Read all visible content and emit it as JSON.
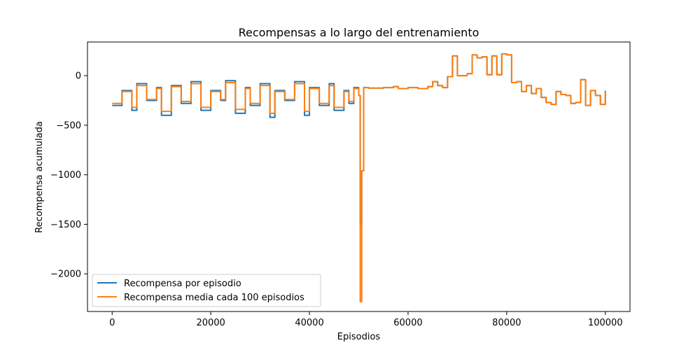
{
  "chart_data": {
    "type": "line",
    "title": "Recompensas a lo largo del entrenamiento",
    "xlabel": "Episodios",
    "ylabel": "Recompensa acumulada",
    "xlim": [
      -5000,
      105000
    ],
    "ylim": [
      -2380,
      340
    ],
    "grid": false,
    "legend_position": "lower-left",
    "x_ticks": [
      0,
      20000,
      40000,
      60000,
      80000,
      100000
    ],
    "x_tick_labels": [
      "0",
      "20000",
      "40000",
      "60000",
      "80000",
      "100000"
    ],
    "y_ticks": [
      0,
      -500,
      -1000,
      -1500,
      -2000
    ],
    "y_tick_labels": [
      "0",
      "−500",
      "−1000",
      "−1500",
      "−2000"
    ],
    "series": [
      {
        "name": "Recompensa por episodio",
        "color": "#1f77b4",
        "x": [
          0,
          2000,
          4000,
          5000,
          7000,
          9000,
          10000,
          12000,
          14000,
          16000,
          18000,
          20000,
          22000,
          23000,
          25000,
          27000,
          28000,
          30000,
          32000,
          33000,
          35000,
          37000,
          39000,
          40000,
          42000,
          44000,
          45000,
          47000,
          48000,
          49000,
          50000,
          50300,
          50600,
          51000,
          52000,
          55000,
          57000,
          58000,
          60000,
          62000,
          64000,
          65000,
          66000,
          67000,
          68000,
          69000,
          70000,
          71000,
          72000,
          73000,
          74000,
          75000,
          76000,
          77000,
          78000,
          79000,
          80000,
          81000,
          82000,
          83000,
          84000,
          85000,
          86000,
          87000,
          88000,
          89000,
          90000,
          91000,
          92000,
          93000,
          94000,
          95000,
          96000,
          97000,
          98000,
          99000,
          100000
        ],
        "values": [
          -300,
          -150,
          -350,
          -80,
          -250,
          -120,
          -400,
          -100,
          -280,
          -60,
          -350,
          -150,
          -250,
          -50,
          -380,
          -120,
          -300,
          -80,
          -420,
          -150,
          -250,
          -60,
          -400,
          -120,
          -300,
          -80,
          -350,
          -150,
          -280,
          -120,
          -200,
          -1500,
          -960,
          -120,
          -125,
          -120,
          -110,
          -130,
          -120,
          -130,
          -110,
          -60,
          -100,
          -120,
          -10,
          200,
          0,
          0,
          20,
          210,
          180,
          190,
          10,
          200,
          10,
          220,
          210,
          -70,
          -60,
          -160,
          -100,
          -180,
          -130,
          -220,
          -270,
          -290,
          -160,
          -190,
          -200,
          -280,
          -270,
          -40,
          -300,
          -150,
          -200,
          -290,
          -150
        ]
      },
      {
        "name": "Recompensa media cada 100 episodios",
        "color": "#ff7f0e",
        "x": [
          0,
          2000,
          4000,
          5000,
          7000,
          9000,
          10000,
          12000,
          14000,
          16000,
          18000,
          20000,
          22000,
          23000,
          25000,
          27000,
          28000,
          30000,
          32000,
          33000,
          35000,
          37000,
          39000,
          40000,
          42000,
          44000,
          45000,
          47000,
          48000,
          49000,
          50000,
          50300,
          50600,
          51000,
          52000,
          55000,
          57000,
          58000,
          60000,
          62000,
          64000,
          65000,
          66000,
          67000,
          68000,
          69000,
          70000,
          71000,
          72000,
          73000,
          74000,
          75000,
          76000,
          77000,
          78000,
          79000,
          80000,
          81000,
          82000,
          83000,
          84000,
          85000,
          86000,
          87000,
          88000,
          89000,
          90000,
          91000,
          92000,
          93000,
          94000,
          95000,
          96000,
          97000,
          98000,
          99000,
          100000
        ],
        "values": [
          -280,
          -160,
          -320,
          -100,
          -240,
          -130,
          -360,
          -110,
          -260,
          -80,
          -320,
          -160,
          -240,
          -70,
          -340,
          -130,
          -280,
          -100,
          -380,
          -160,
          -240,
          -80,
          -360,
          -130,
          -280,
          -100,
          -320,
          -160,
          -260,
          -130,
          -200,
          -2280,
          -960,
          -120,
          -125,
          -120,
          -110,
          -130,
          -120,
          -130,
          -110,
          -60,
          -100,
          -120,
          -10,
          200,
          0,
          0,
          20,
          210,
          180,
          190,
          10,
          200,
          10,
          220,
          210,
          -70,
          -60,
          -160,
          -100,
          -180,
          -130,
          -220,
          -270,
          -290,
          -160,
          -190,
          -200,
          -280,
          -270,
          -40,
          -300,
          -150,
          -200,
          -290,
          -150
        ]
      }
    ]
  }
}
